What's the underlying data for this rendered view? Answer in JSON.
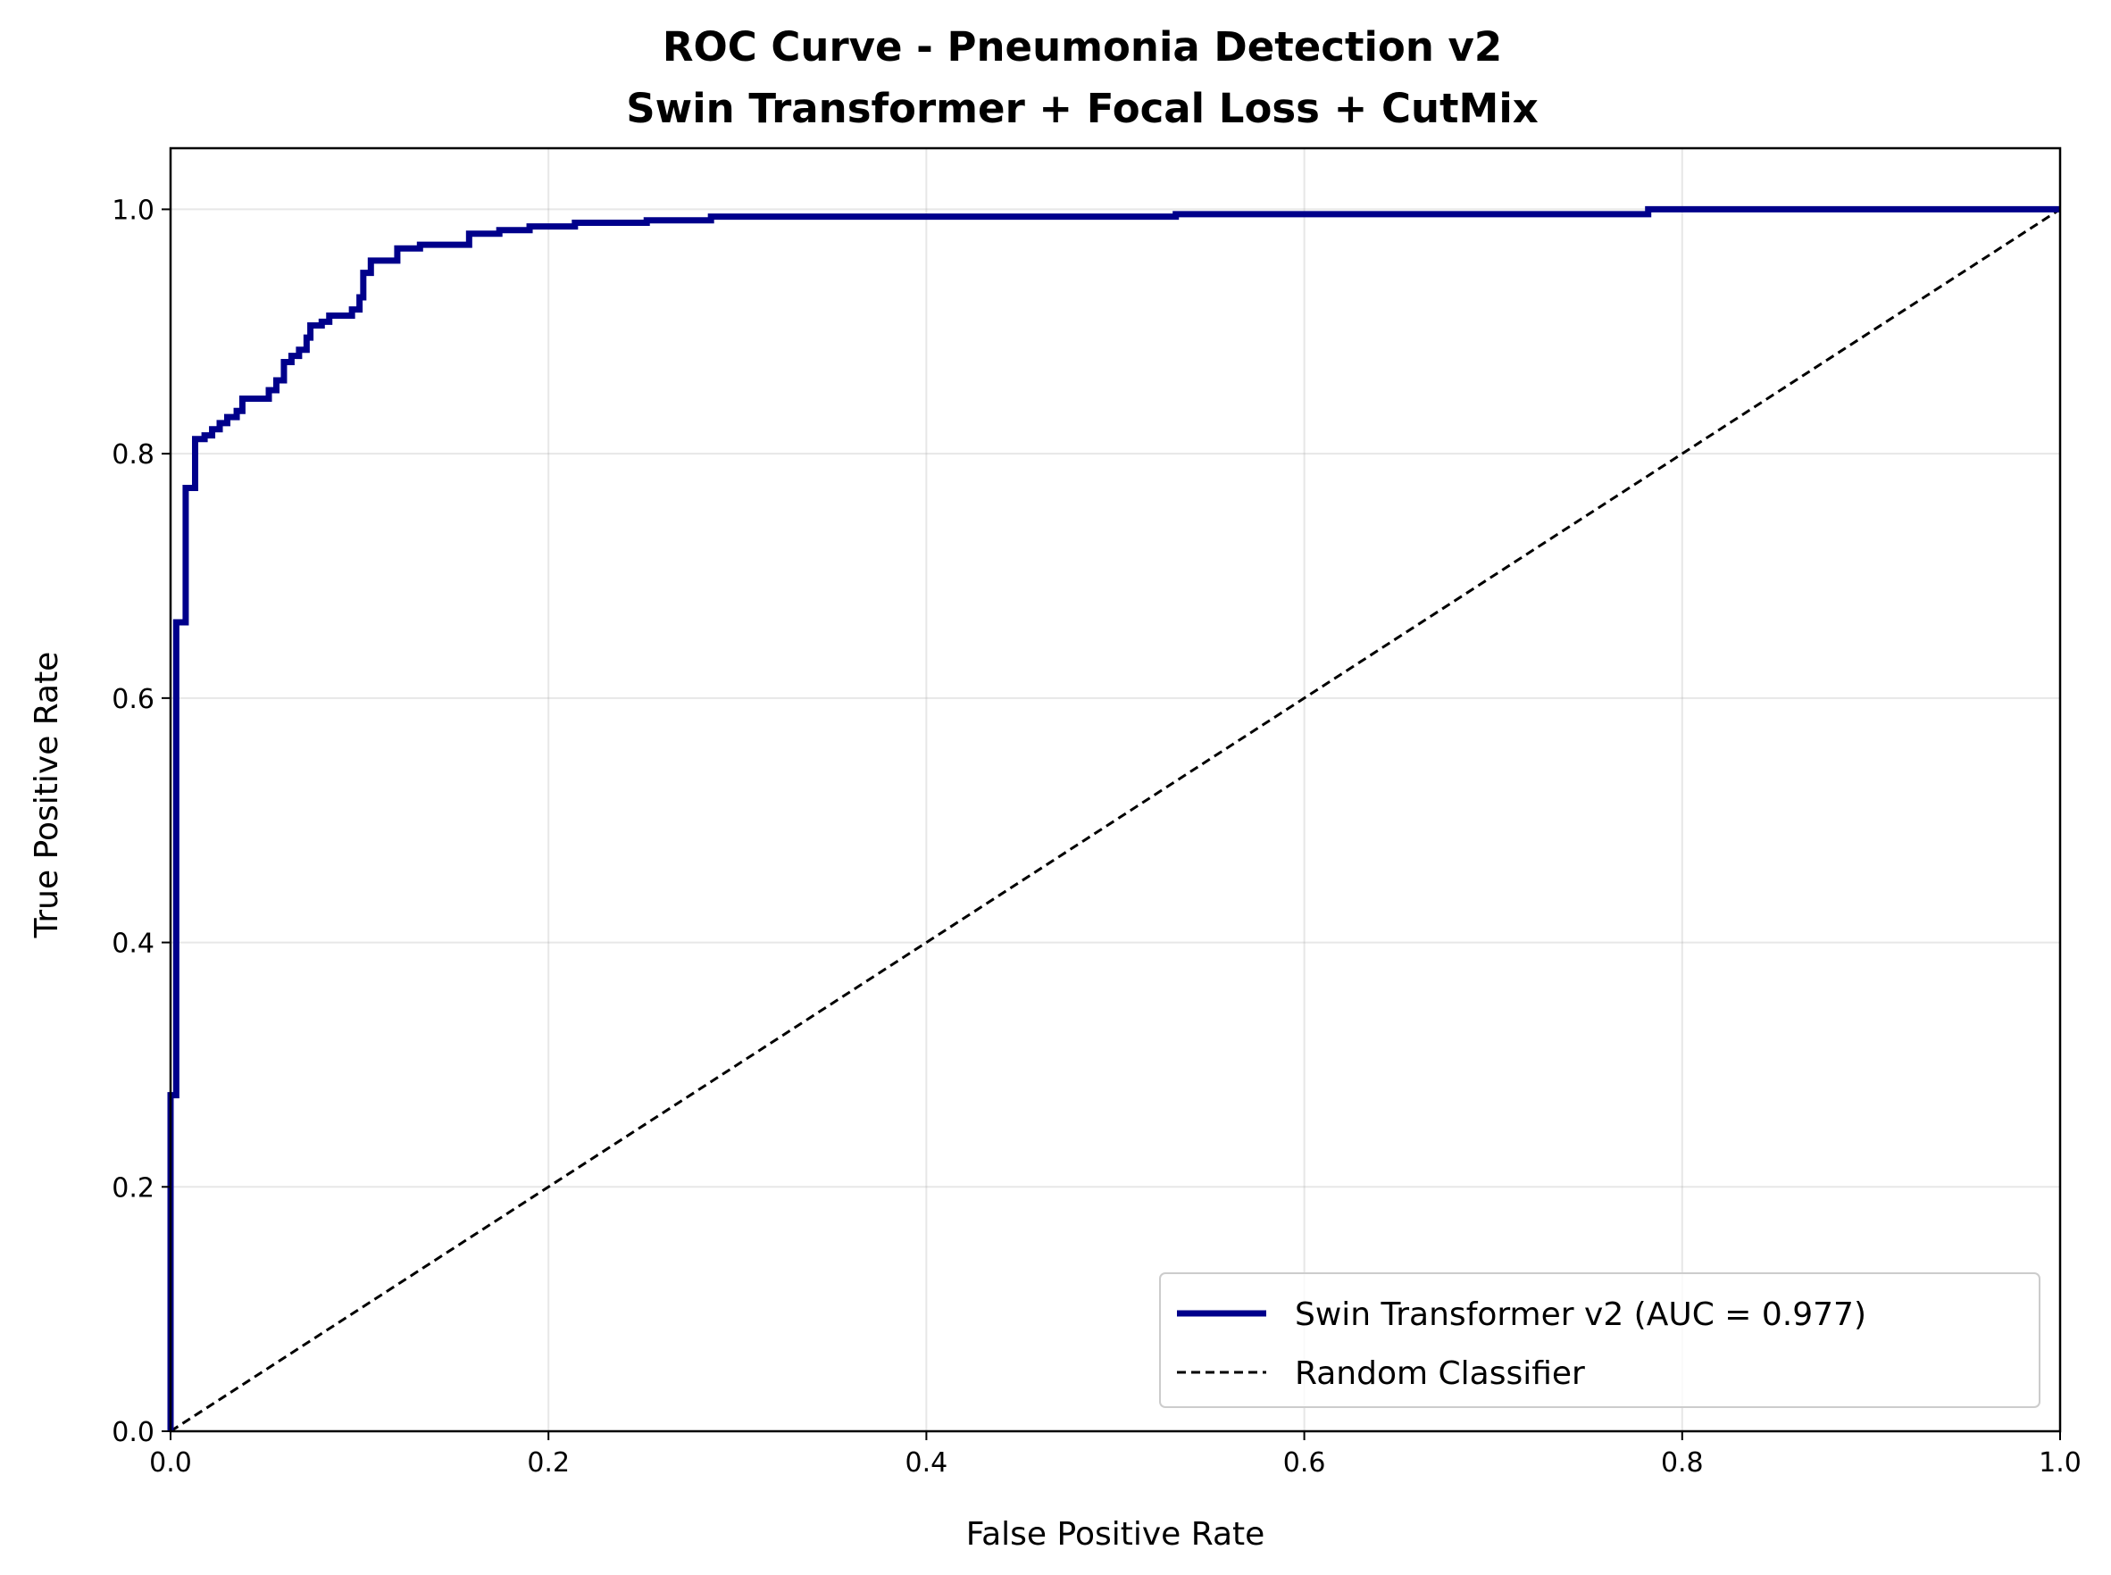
{
  "chart_data": {
    "type": "line",
    "title": "ROC Curve - Pneumonia Detection v2",
    "subtitle": "Swin Transformer + Focal Loss + CutMix",
    "xlabel": "False Positive Rate",
    "ylabel": "True Positive Rate",
    "xlim": [
      0.0,
      1.0
    ],
    "ylim": [
      0.0,
      1.05
    ],
    "x_ticks": [
      "0.0",
      "0.2",
      "0.4",
      "0.6",
      "0.8",
      "1.0"
    ],
    "y_ticks": [
      "0.0",
      "0.2",
      "0.4",
      "0.6",
      "0.8",
      "1.0"
    ],
    "grid": true,
    "legend_position": "lower-right",
    "series": [
      {
        "name": "Swin Transformer v2 (AUC = 0.977)",
        "color": "#00008b",
        "style": "solid",
        "points": [
          [
            0.0,
            0.0
          ],
          [
            0.0,
            0.275
          ],
          [
            0.003,
            0.275
          ],
          [
            0.003,
            0.662
          ],
          [
            0.008,
            0.662
          ],
          [
            0.008,
            0.772
          ],
          [
            0.013,
            0.772
          ],
          [
            0.013,
            0.812
          ],
          [
            0.018,
            0.812
          ],
          [
            0.018,
            0.815
          ],
          [
            0.022,
            0.815
          ],
          [
            0.022,
            0.82
          ],
          [
            0.026,
            0.82
          ],
          [
            0.026,
            0.825
          ],
          [
            0.03,
            0.825
          ],
          [
            0.03,
            0.83
          ],
          [
            0.035,
            0.83
          ],
          [
            0.035,
            0.835
          ],
          [
            0.038,
            0.835
          ],
          [
            0.038,
            0.845
          ],
          [
            0.052,
            0.845
          ],
          [
            0.052,
            0.852
          ],
          [
            0.056,
            0.852
          ],
          [
            0.056,
            0.86
          ],
          [
            0.06,
            0.86
          ],
          [
            0.06,
            0.875
          ],
          [
            0.064,
            0.875
          ],
          [
            0.064,
            0.88
          ],
          [
            0.068,
            0.88
          ],
          [
            0.068,
            0.885
          ],
          [
            0.072,
            0.885
          ],
          [
            0.072,
            0.895
          ],
          [
            0.074,
            0.895
          ],
          [
            0.074,
            0.905
          ],
          [
            0.08,
            0.905
          ],
          [
            0.08,
            0.908
          ],
          [
            0.084,
            0.908
          ],
          [
            0.084,
            0.913
          ],
          [
            0.096,
            0.913
          ],
          [
            0.096,
            0.918
          ],
          [
            0.1,
            0.918
          ],
          [
            0.1,
            0.928
          ],
          [
            0.102,
            0.928
          ],
          [
            0.102,
            0.948
          ],
          [
            0.106,
            0.948
          ],
          [
            0.106,
            0.958
          ],
          [
            0.12,
            0.958
          ],
          [
            0.12,
            0.968
          ],
          [
            0.132,
            0.968
          ],
          [
            0.132,
            0.971
          ],
          [
            0.158,
            0.971
          ],
          [
            0.158,
            0.98
          ],
          [
            0.174,
            0.98
          ],
          [
            0.174,
            0.983
          ],
          [
            0.19,
            0.983
          ],
          [
            0.19,
            0.986
          ],
          [
            0.214,
            0.986
          ],
          [
            0.214,
            0.989
          ],
          [
            0.252,
            0.989
          ],
          [
            0.252,
            0.991
          ],
          [
            0.286,
            0.991
          ],
          [
            0.286,
            0.994
          ],
          [
            0.532,
            0.994
          ],
          [
            0.532,
            0.996
          ],
          [
            0.782,
            0.996
          ],
          [
            0.782,
            1.0
          ],
          [
            1.0,
            1.0
          ]
        ]
      },
      {
        "name": "Random Classifier",
        "color": "#000000",
        "style": "dashed",
        "points": [
          [
            0.0,
            0.0
          ],
          [
            1.0,
            1.0
          ]
        ]
      }
    ]
  }
}
